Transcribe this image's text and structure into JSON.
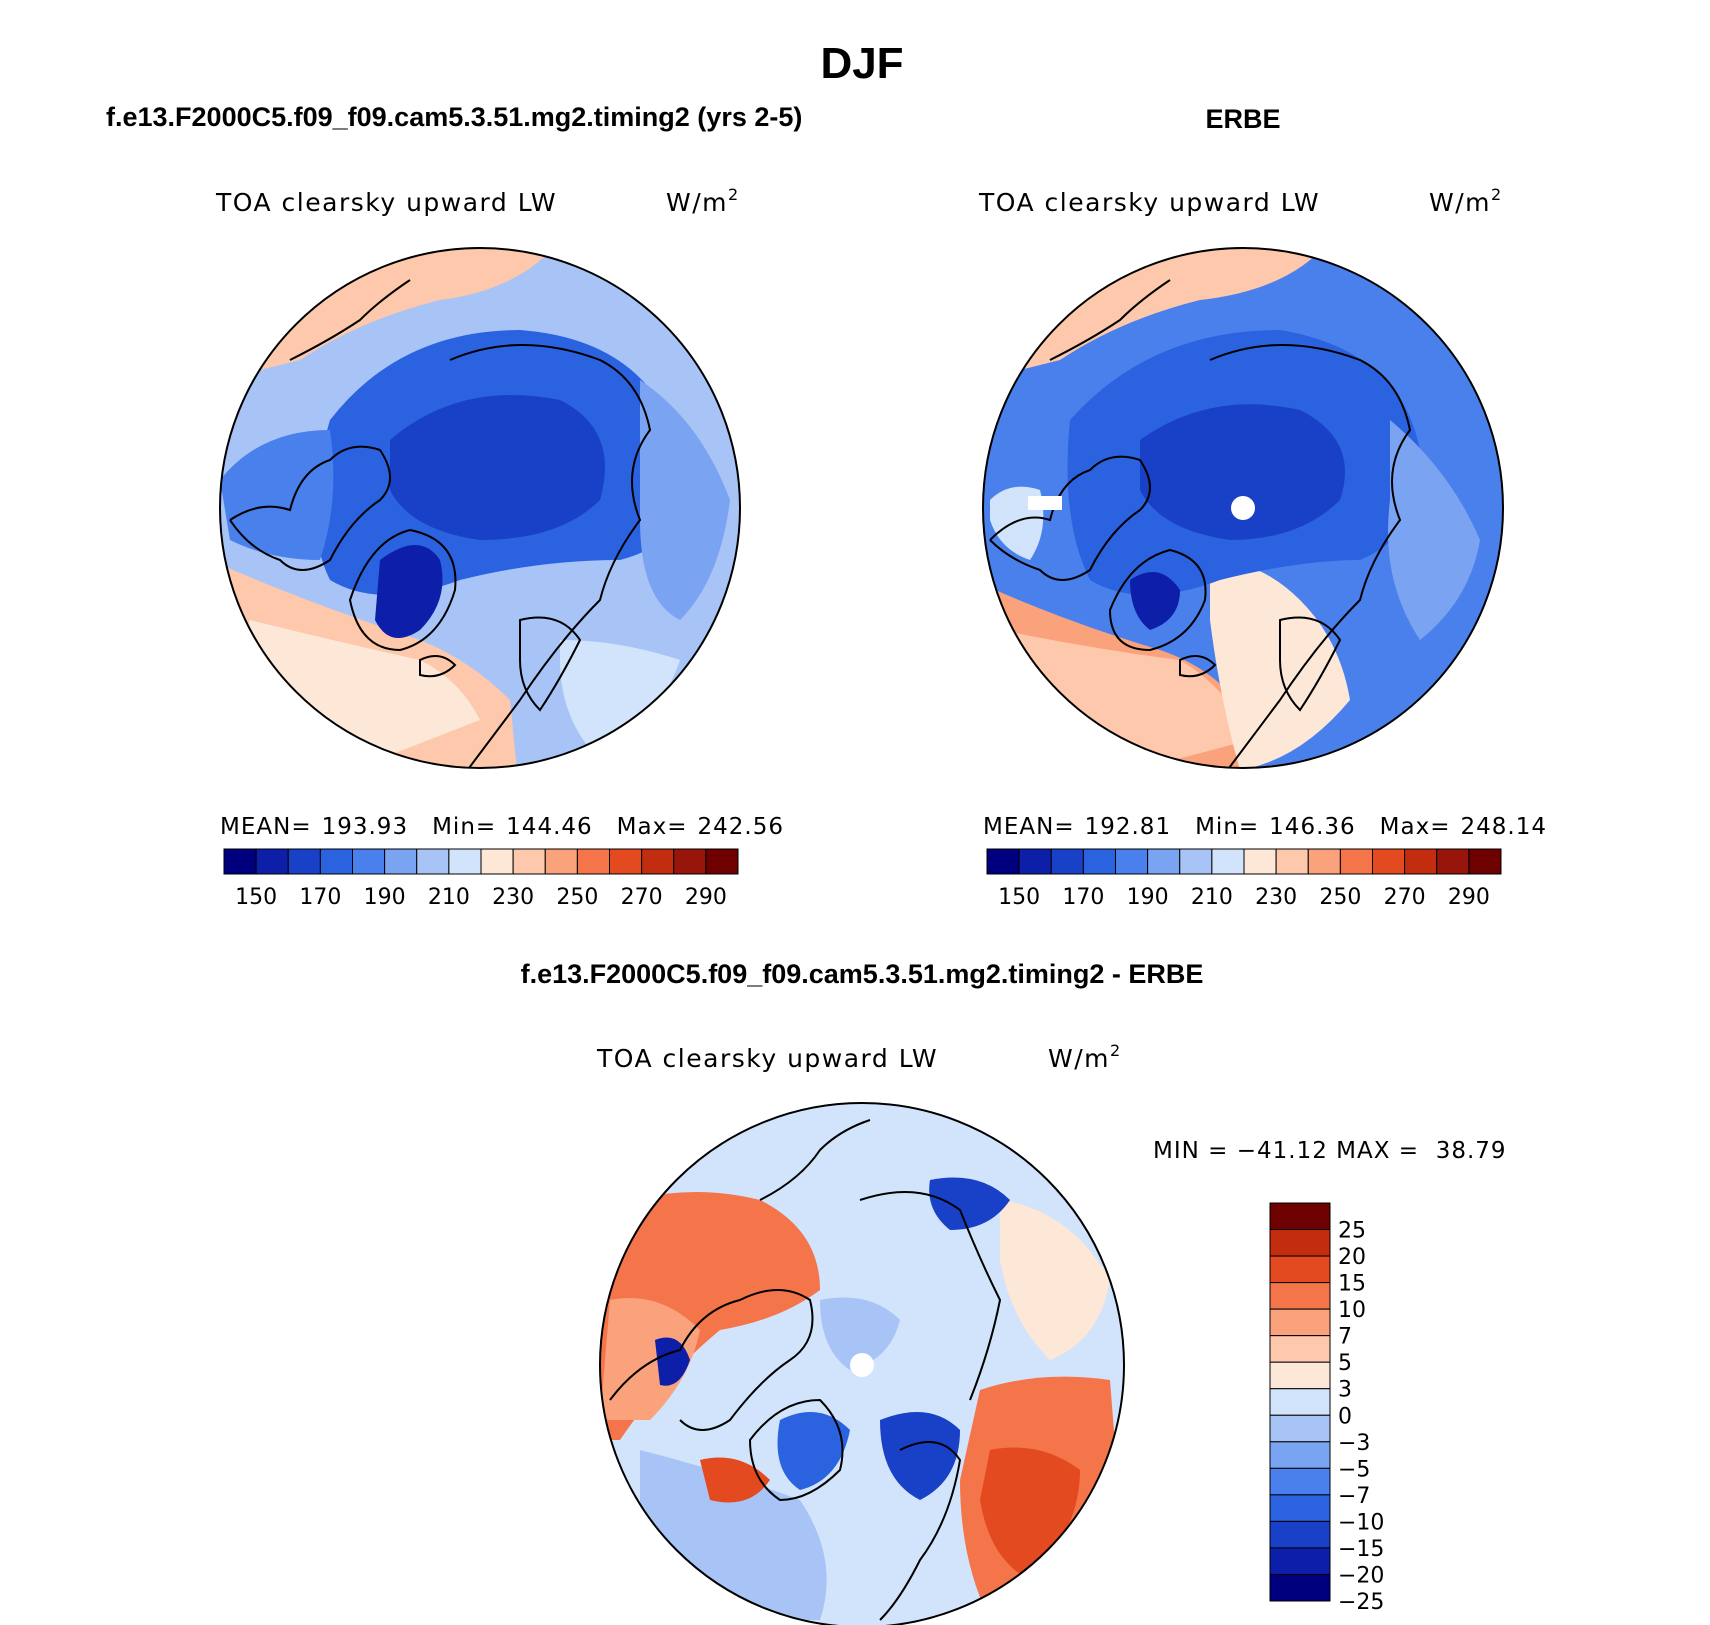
{
  "figure": {
    "title": "DJF",
    "panel_a_title": "f.e13.F2000C5.f09_f09.cam5.3.51.mg2.timing2 (yrs 2-5)",
    "panel_b_title": "ERBE",
    "panel_c_title": "f.e13.F2000C5.f09_f09.cam5.3.51.mg2.timing2 - ERBE"
  },
  "colors": {
    "abs": [
      "#00007f",
      "#0d1fa8",
      "#1941c8",
      "#2b62e0",
      "#4a80ec",
      "#7aa3f2",
      "#a8c4f7",
      "#d2e4fb",
      "#fde8d8",
      "#fdc8ab",
      "#f9a27b",
      "#f4754a",
      "#e34a1f",
      "#c22d10",
      "#97150a",
      "#6e0000"
    ],
    "diff": [
      "#00007f",
      "#0d1fa8",
      "#1941c8",
      "#2b62e0",
      "#4a80ec",
      "#7aa3f2",
      "#a8c4f7",
      "#d2e4fb",
      "#fde8d8",
      "#fdc8ab",
      "#f9a27b",
      "#f4754a",
      "#e34a1f",
      "#c22d10",
      "#6e0000"
    ]
  },
  "chart_data": [
    {
      "type": "heatmap",
      "projection": "north polar stereographic",
      "title": "f.e13.F2000C5.f09_f09.cam5.3.51.mg2.timing2 (yrs 2-5)",
      "variable": "TOA clearsky upward LW",
      "units_text": "W/m",
      "units_sup": "2",
      "stats": {
        "mean_label": "MEAN=",
        "mean": "193.93",
        "min_label": "Min=",
        "min": "144.46",
        "max_label": "Max=",
        "max": "242.56"
      },
      "colorbar_levels": [
        "150",
        "170",
        "190",
        "210",
        "230",
        "250",
        "270",
        "290"
      ],
      "region_levels": {
        "arctic": 165,
        "greenland": 150,
        "canada": 180,
        "siberia": 175,
        "n_atlantic": 225,
        "n_pacific": 220,
        "europe": 215
      }
    },
    {
      "type": "heatmap",
      "projection": "north polar stereographic",
      "title": "ERBE",
      "variable": "TOA clearsky upward LW",
      "units_text": "W/m",
      "units_sup": "2",
      "stats": {
        "mean_label": "MEAN=",
        "mean": "192.81",
        "min_label": "Min=",
        "min": "146.36",
        "max_label": "Max=",
        "max": "248.14"
      },
      "colorbar_levels": [
        "150",
        "170",
        "190",
        "210",
        "230",
        "250",
        "270",
        "290"
      ],
      "region_levels": {
        "arctic": 165,
        "greenland": 155,
        "canada": 180,
        "siberia": 175,
        "n_atlantic": 235,
        "n_pacific": 230,
        "europe": 225
      }
    },
    {
      "type": "heatmap",
      "projection": "north polar stereographic",
      "title": "f.e13.F2000C5.f09_f09.cam5.3.51.mg2.timing2 - ERBE",
      "variable": "TOA clearsky upward LW",
      "units_text": "W/m",
      "units_sup": "2",
      "stats_text": "MIN = −41.12 MAX =  38.79",
      "colorbar_levels": [
        "25",
        "20",
        "15",
        "10",
        "7",
        "5",
        "3",
        "0",
        "−3",
        "−5",
        "−7",
        "−10",
        "−15",
        "−20",
        "−25"
      ],
      "region_levels": {
        "arctic": -2,
        "canada": 10,
        "siberia_east": 12,
        "n_atlantic": -4,
        "europe": -3,
        "greenland_sea": -15
      }
    }
  ]
}
